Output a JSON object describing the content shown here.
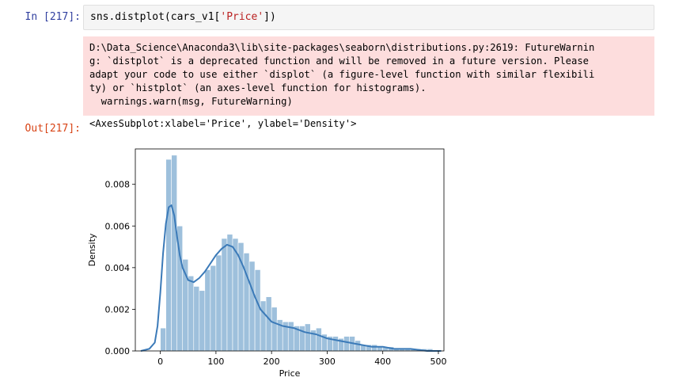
{
  "cell": {
    "in_prompt": "In [217]:",
    "code_prefix": "sns.distplot(cars_v1[",
    "code_string": "'Price'",
    "code_suffix": "])",
    "stderr_lines": [
      "D:\\Data_Science\\Anaconda3\\lib\\site-packages\\seaborn\\distributions.py:2619: FutureWarnin",
      "g: `distplot` is a deprecated function and will be removed in a future version. Please",
      "adapt your code to use either `displot` (a figure-level function with similar flexibili",
      "ty) or `histplot` (an axes-level function for histograms).",
      "  warnings.warn(msg, FutureWarning)"
    ],
    "out_prompt": "Out[217]:",
    "out_text": "<AxesSubplot:xlabel='Price', ylabel='Density'>"
  },
  "chart_data": {
    "type": "bar",
    "xlabel": "Price",
    "ylabel": "Density",
    "xlim": [
      -45,
      510
    ],
    "ylim": [
      0,
      0.0097
    ],
    "xticks": [
      0,
      100,
      200,
      300,
      400,
      500
    ],
    "yticks": [
      0.0,
      0.002,
      0.004,
      0.006,
      0.008
    ],
    "ytick_labels": [
      "0.000",
      "0.002",
      "0.004",
      "0.006",
      "0.008"
    ],
    "bin_width": 10,
    "bins_left": [
      0,
      10,
      20,
      30,
      40,
      50,
      60,
      70,
      80,
      90,
      100,
      110,
      120,
      130,
      140,
      150,
      160,
      170,
      180,
      190,
      200,
      210,
      220,
      230,
      240,
      250,
      260,
      270,
      280,
      290,
      300,
      310,
      320,
      330,
      340,
      350,
      360,
      370,
      380,
      390,
      400,
      410,
      420,
      430,
      440,
      450,
      460,
      470,
      480,
      490
    ],
    "density": [
      0.0011,
      0.0092,
      0.0094,
      0.006,
      0.0044,
      0.0036,
      0.0031,
      0.0029,
      0.0039,
      0.0041,
      0.0046,
      0.0054,
      0.0056,
      0.0054,
      0.0052,
      0.0047,
      0.0043,
      0.0039,
      0.0024,
      0.0026,
      0.0021,
      0.0015,
      0.0014,
      0.0014,
      0.0012,
      0.0012,
      0.0013,
      0.001,
      0.0011,
      0.0008,
      0.0007,
      0.0007,
      0.0006,
      0.0007,
      0.0007,
      0.0005,
      0.0003,
      0.0003,
      0.0003,
      0.0002,
      0.0002,
      0.0002,
      0.0001,
      0.0001,
      0.0001,
      0.0001,
      0.0001,
      0.0001,
      0.0001,
      5e-05
    ],
    "kde_x": [
      -35,
      -20,
      -10,
      -5,
      0,
      5,
      10,
      15,
      20,
      25,
      30,
      35,
      40,
      50,
      60,
      70,
      80,
      90,
      100,
      110,
      120,
      130,
      140,
      150,
      160,
      170,
      180,
      200,
      220,
      240,
      260,
      280,
      300,
      320,
      340,
      360,
      380,
      400,
      420,
      450,
      480,
      505
    ],
    "kde_y": [
      0.0,
      0.0001,
      0.0004,
      0.0012,
      0.0028,
      0.0047,
      0.0061,
      0.0069,
      0.007,
      0.0065,
      0.0055,
      0.0046,
      0.004,
      0.0034,
      0.0033,
      0.0035,
      0.0038,
      0.0042,
      0.0046,
      0.0049,
      0.0051,
      0.005,
      0.0046,
      0.004,
      0.0033,
      0.0026,
      0.002,
      0.0014,
      0.0012,
      0.0011,
      0.0009,
      0.0008,
      0.0006,
      0.0005,
      0.0004,
      0.0003,
      0.0002,
      0.0002,
      0.0001,
      0.0001,
      0.0,
      0.0
    ],
    "bar_color": "#9ec0dc",
    "line_color": "#3b7ab8"
  }
}
